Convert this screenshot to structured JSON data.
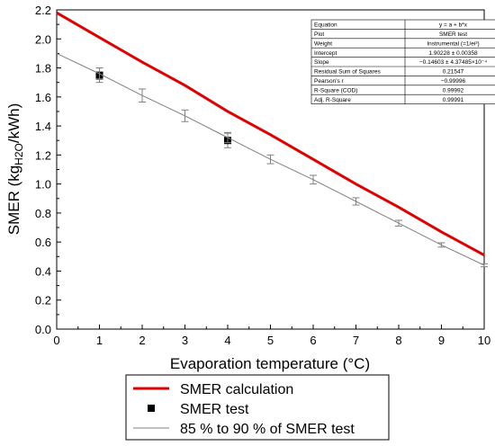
{
  "chart_data": {
    "type": "line",
    "xlabel": "Evaporation temperature (°C)",
    "ylabel": {
      "pre": "SMER (kg",
      "sub": "H2O",
      "post": "/kWh)"
    },
    "xlim": [
      0,
      10
    ],
    "ylim": [
      0,
      2.2
    ],
    "x_ticks": [
      "0",
      "1",
      "2",
      "3",
      "4",
      "5",
      "6",
      "7",
      "8",
      "9",
      "10"
    ],
    "y_ticks": [
      "0.0",
      "0.2",
      "0.4",
      "0.6",
      "0.8",
      "1.0",
      "1.2",
      "1.4",
      "1.6",
      "1.8",
      "2.0",
      "2.2"
    ],
    "grid": false,
    "legend_position": "bottom",
    "series": [
      {
        "name": "SMER calculation",
        "style": "line",
        "color": "#e00000",
        "x": [
          0,
          1,
          2,
          3,
          4,
          5,
          6,
          7,
          8,
          9,
          10
        ],
        "y": [
          2.18,
          2.01,
          1.84,
          1.68,
          1.5,
          1.34,
          1.17,
          1.0,
          0.84,
          0.67,
          0.51
        ]
      },
      {
        "name": "SMER test",
        "style": "square-markers",
        "color": "#000000",
        "x": [
          1,
          4
        ],
        "y": [
          1.75,
          1.3
        ],
        "err": [
          0.05,
          0.05
        ]
      },
      {
        "name": "85 % to 90 % of SMER test",
        "style": "line-errorbars",
        "color": "#808080",
        "x": [
          0,
          1,
          2,
          3,
          4,
          5,
          6,
          7,
          8,
          9,
          10
        ],
        "y": [
          1.9,
          1.76,
          1.61,
          1.47,
          1.32,
          1.17,
          1.03,
          0.88,
          0.73,
          0.58,
          0.44
        ],
        "err": [
          0,
          0.04,
          0.045,
          0.04,
          0.035,
          0.03,
          0.03,
          0.025,
          0.02,
          0.015,
          0.01
        ]
      }
    ],
    "fit_table": [
      [
        "Equation",
        "y = a + b*x"
      ],
      [
        "Plot",
        "SMER test"
      ],
      [
        "Weight",
        "Instrumental (=1/ei²)"
      ],
      [
        "Intercept",
        "1.90228 ± 0.00358"
      ],
      [
        "Slope",
        "−0.14603 ± 4.37485×10⁻⁴"
      ],
      [
        "Residual Sum of Squares",
        "0.21547"
      ],
      [
        "Pearson's r",
        "−0.99996"
      ],
      [
        "R-Square (COD)",
        "0.99992"
      ],
      [
        "Adj. R-Square",
        "0.99991"
      ]
    ]
  }
}
